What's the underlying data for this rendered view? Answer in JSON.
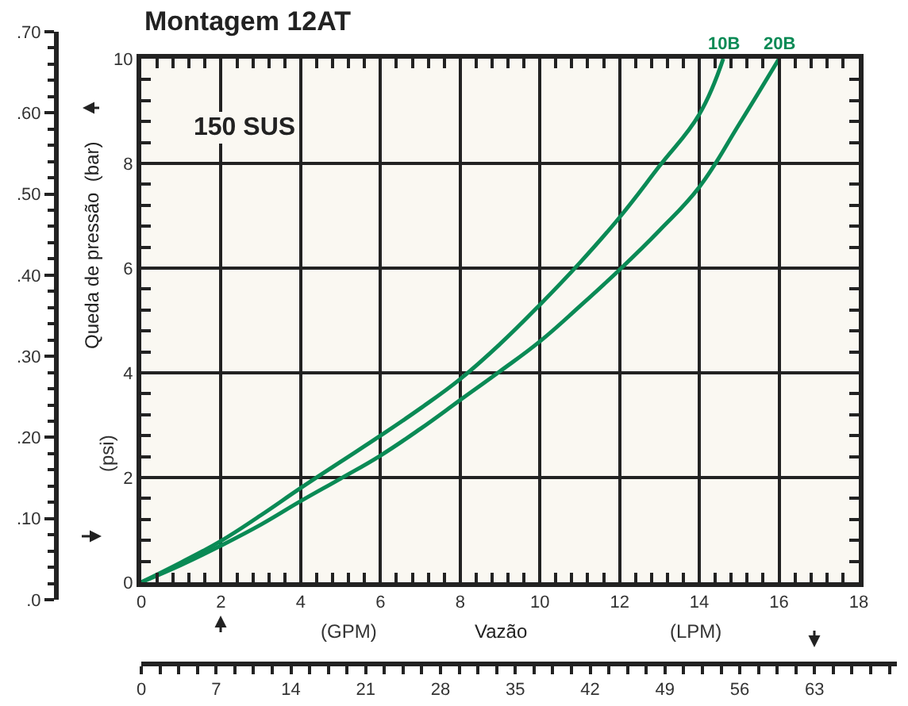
{
  "chart_data": {
    "type": "line",
    "title": "Montagem 12AT",
    "xlabel": "(GPM)",
    "ylabel": "(psi)",
    "x2label": "(LPM)",
    "annotations": [
      "150 SUS",
      "Vazão",
      "Queda de pressão  (bar)"
    ],
    "x": [
      0,
      1,
      2,
      3,
      4,
      5,
      6,
      7,
      8,
      9,
      10,
      11,
      12,
      13,
      14,
      14.6
    ],
    "series": [
      {
        "name": "10B",
        "color": "#0a8a55",
        "values": [
          0,
          0.38,
          0.79,
          1.28,
          1.8,
          2.3,
          2.8,
          3.32,
          3.88,
          4.55,
          5.3,
          6.1,
          6.97,
          7.95,
          8.94,
          10
        ]
      },
      {
        "name": "20B",
        "x": [
          0,
          1,
          2,
          3,
          4,
          5,
          6,
          7,
          8,
          9,
          10,
          11,
          12,
          13,
          14,
          15,
          16
        ],
        "color": "#0a8a55",
        "values": [
          0,
          0.33,
          0.7,
          1.1,
          1.55,
          1.98,
          2.42,
          2.93,
          3.48,
          4.03,
          4.6,
          5.27,
          5.97,
          6.72,
          7.55,
          8.75,
          10
        ]
      }
    ],
    "xlim": [
      0,
      18
    ],
    "xticks": [
      0,
      2,
      4,
      6,
      8,
      10,
      12,
      14,
      16,
      18
    ],
    "ylim": [
      0,
      10
    ],
    "yticks": [
      0,
      2,
      4,
      6,
      8,
      10
    ],
    "y2lim": [
      0,
      0.7
    ],
    "y2ticks": [
      {
        "value": 0,
        "label": ".0"
      },
      {
        "value": 0.1,
        "label": ".10"
      },
      {
        "value": 0.2,
        "label": ".20"
      },
      {
        "value": 0.3,
        "label": ".30"
      },
      {
        "value": 0.4,
        "label": ".40"
      },
      {
        "value": 0.5,
        "label": ".50"
      },
      {
        "value": 0.6,
        "label": ".60"
      },
      {
        "value": 0.7,
        "label": ".70"
      }
    ],
    "x2lim": [
      0,
      70.7
    ],
    "x2ticks": [
      0,
      7,
      14,
      21,
      28,
      35,
      42,
      49,
      56,
      63
    ],
    "grid": true,
    "legend": false,
    "marker": "none",
    "line_style": "solid"
  }
}
